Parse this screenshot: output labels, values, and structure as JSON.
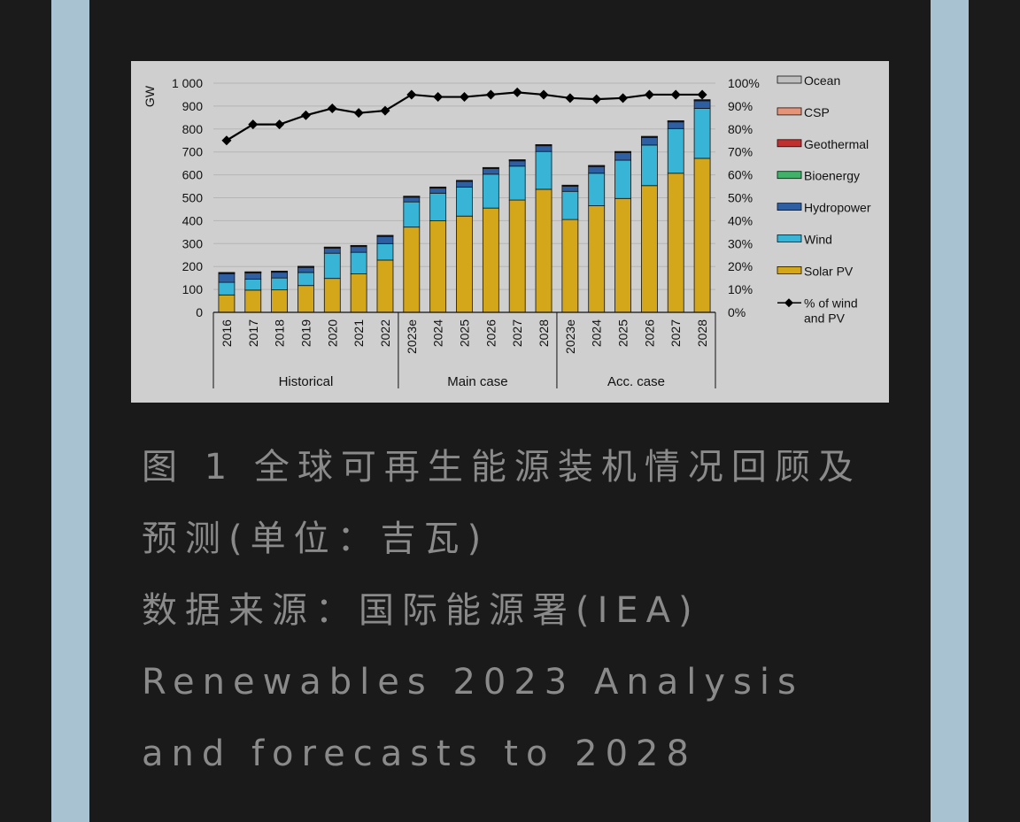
{
  "caption": {
    "figure_title": "图 1 全球可再生能源装机情况回顾及预测(单位：吉瓦)",
    "source": "数据来源：国际能源署(IEA) Renewables 2023 Analysis and forecasts to 2028"
  },
  "chart_data": {
    "type": "bar",
    "stacked": true,
    "title": "",
    "ylabel": "GW",
    "ylim": [
      0,
      1000
    ],
    "yticks": [
      "0",
      "100",
      "200",
      "300",
      "400",
      "500",
      "600",
      "700",
      "800",
      "900",
      "1 000"
    ],
    "y2lim": [
      0,
      100
    ],
    "y2ticks": [
      "0%",
      "10%",
      "20%",
      "30%",
      "40%",
      "50%",
      "60%",
      "70%",
      "80%",
      "90%",
      "100%"
    ],
    "categories": [
      "2016",
      "2017",
      "2018",
      "2019",
      "2020",
      "2021",
      "2022",
      "2023e",
      "2024",
      "2025",
      "2026",
      "2027",
      "2028",
      "2023e",
      "2024",
      "2025",
      "2026",
      "2027",
      "2028"
    ],
    "groups": [
      {
        "label": "Historical",
        "start": 0,
        "end": 6
      },
      {
        "label": "Main case",
        "start": 7,
        "end": 12
      },
      {
        "label": "Acc. case",
        "start": 13,
        "end": 18
      }
    ],
    "series": [
      {
        "name": "Solar PV",
        "color": "#d4a619",
        "values": [
          76,
          97,
          98,
          117,
          148,
          168,
          228,
          372,
          400,
          420,
          455,
          490,
          537,
          405,
          465,
          497,
          553,
          607,
          672
        ]
      },
      {
        "name": "Wind",
        "color": "#38b4d6",
        "values": [
          55,
          48,
          52,
          57,
          110,
          94,
          72,
          110,
          120,
          127,
          148,
          148,
          165,
          123,
          142,
          167,
          177,
          195,
          218
        ]
      },
      {
        "name": "Hydropower",
        "color": "#2f5fa3",
        "values": [
          37,
          27,
          25,
          22,
          22,
          25,
          31,
          20,
          22,
          24,
          24,
          23,
          25,
          22,
          29,
          33,
          33,
          29,
          33
        ]
      },
      {
        "name": "Bioenergy",
        "color": "#3fb168",
        "values": [
          4,
          3,
          3,
          3,
          3,
          3,
          3,
          3,
          3,
          3,
          3,
          3,
          3,
          3,
          3,
          3,
          3,
          3,
          3
        ]
      },
      {
        "name": "Geothermal",
        "color": "#c0302f",
        "values": [
          1,
          1,
          1,
          1,
          1,
          1,
          1,
          1,
          1,
          1,
          1,
          1,
          1,
          1,
          1,
          1,
          1,
          1,
          1
        ]
      },
      {
        "name": "CSP",
        "color": "#e5947a",
        "values": [
          1,
          1,
          1,
          1,
          1,
          1,
          1,
          1,
          1,
          1,
          1,
          1,
          1,
          1,
          1,
          1,
          1,
          1,
          1
        ]
      },
      {
        "name": "Ocean",
        "color": "#bfbfbf",
        "values": [
          0,
          0,
          0,
          0,
          0,
          0,
          0,
          0,
          0,
          0,
          0,
          0,
          0,
          0,
          0,
          0,
          0,
          0,
          0
        ]
      }
    ],
    "line_series": {
      "name": "% of wind and PV",
      "legend_lines": [
        "% of wind",
        "and PV"
      ],
      "axis": "right",
      "color": "#000000",
      "values": [
        75,
        82,
        82,
        86,
        89,
        87,
        88,
        95,
        94,
        94,
        95,
        96,
        95,
        93.5,
        93,
        93.5,
        95,
        95,
        95
      ]
    },
    "legend_order": [
      "Ocean",
      "CSP",
      "Geothermal",
      "Bioenergy",
      "Hydropower",
      "Wind",
      "Solar PV"
    ],
    "legend_position": "right",
    "grid": true
  }
}
